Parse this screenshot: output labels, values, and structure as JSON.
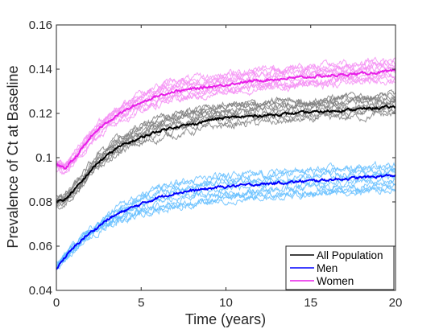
{
  "chart_data": {
    "type": "line",
    "xlabel": "Time (years)",
    "ylabel": "Prevalence of Ct at Baseline",
    "xlim": [
      0,
      20
    ],
    "ylim": [
      0.04,
      0.16
    ],
    "x_ticks": [
      0,
      5,
      10,
      15,
      20
    ],
    "x_tick_labels": [
      "0",
      "5",
      "10",
      "15",
      "20"
    ],
    "y_ticks": [
      0.04,
      0.06,
      0.08,
      0.1,
      0.12,
      0.14,
      0.16
    ],
    "y_tick_labels": [
      "0.04",
      "0.06",
      "0.08",
      "0.1",
      "0.12",
      "0.14",
      "0.16"
    ],
    "grid": false,
    "legend_position": "bottom-right",
    "legend": [
      "All Population",
      "Men",
      "Women"
    ],
    "series": [
      {
        "name": "All Population",
        "color": "#000000",
        "band_color": "#7f7f7f",
        "x": [
          0,
          0.5,
          1,
          1.5,
          2,
          2.5,
          3,
          3.5,
          4,
          5,
          6,
          7,
          8,
          9,
          10,
          12,
          14,
          16,
          18,
          20
        ],
        "values": [
          0.08,
          0.081,
          0.085,
          0.089,
          0.094,
          0.098,
          0.101,
          0.104,
          0.106,
          0.109,
          0.112,
          0.114,
          0.115,
          0.117,
          0.118,
          0.119,
          0.12,
          0.121,
          0.122,
          0.123
        ]
      },
      {
        "name": "Men",
        "color": "#0000ff",
        "band_color": "#66bfff",
        "x": [
          0,
          0.5,
          1,
          1.5,
          2,
          2.5,
          3,
          3.5,
          4,
          5,
          6,
          7,
          8,
          9,
          10,
          12,
          14,
          16,
          18,
          20
        ],
        "values": [
          0.05,
          0.055,
          0.059,
          0.063,
          0.066,
          0.069,
          0.072,
          0.074,
          0.076,
          0.079,
          0.082,
          0.084,
          0.085,
          0.086,
          0.087,
          0.088,
          0.089,
          0.09,
          0.091,
          0.092
        ]
      },
      {
        "name": "Women",
        "color": "#e81ee8",
        "band_color": "#f58ff5",
        "x": [
          0,
          0.5,
          1,
          1.5,
          2,
          2.5,
          3,
          3.5,
          4,
          5,
          6,
          7,
          8,
          9,
          10,
          12,
          14,
          16,
          18,
          20
        ],
        "values": [
          0.097,
          0.095,
          0.099,
          0.104,
          0.109,
          0.113,
          0.116,
          0.119,
          0.121,
          0.125,
          0.128,
          0.13,
          0.131,
          0.132,
          0.133,
          0.135,
          0.136,
          0.137,
          0.138,
          0.139
        ]
      }
    ]
  }
}
